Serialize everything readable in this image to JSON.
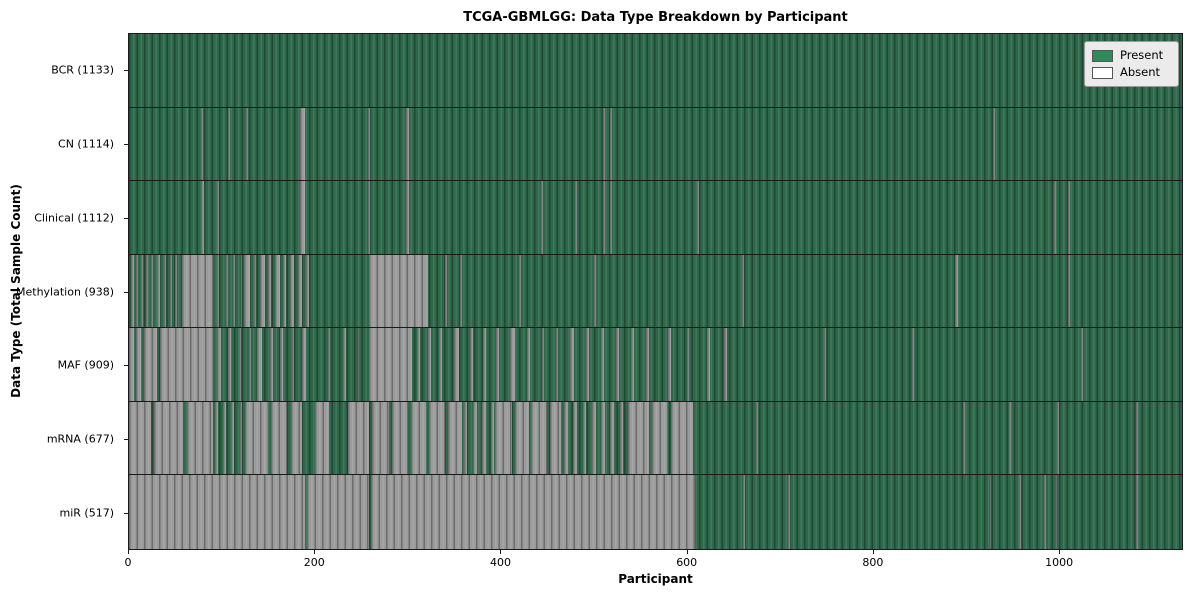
{
  "title": "TCGA-GBMLGG: Data Type Breakdown by Participant",
  "xlabel": "Participant",
  "ylabel": "Data Type (Total Sample Count)",
  "legend": {
    "present_label": "Present",
    "absent_label": "Absent",
    "present_color": "#2e8b57",
    "absent_color": "#ffffff"
  },
  "colors": {
    "present_fill": "#2e684b",
    "absent_fill": "#9b9b9b",
    "frame": "#1a1a1a",
    "legend_bg": "#ebebeb"
  },
  "chart_data": {
    "type": "heatmap",
    "title": "TCGA-GBMLGG: Data Type Breakdown by Participant",
    "xlabel": "Participant",
    "ylabel": "Data Type (Total Sample Count)",
    "legend": [
      "Present",
      "Absent"
    ],
    "legend_position": "upper right",
    "x_range": [
      0,
      1133
    ],
    "x_ticks": [
      0,
      200,
      400,
      600,
      800,
      1000
    ],
    "total_participants": 1133,
    "rows": [
      {
        "label": "BCR (1133)",
        "name": "BCR",
        "present_count": 1133,
        "absent_intervals": []
      },
      {
        "label": "CN (1114)",
        "name": "CN",
        "present_count": 1114,
        "absent_intervals": [
          [
            62,
            64
          ],
          [
            78,
            80
          ],
          [
            107,
            109
          ],
          [
            126,
            128
          ],
          [
            184,
            189
          ],
          [
            257,
            259
          ],
          [
            298,
            301
          ],
          [
            510,
            512
          ],
          [
            518,
            520
          ],
          [
            930,
            932
          ]
        ]
      },
      {
        "label": "Clinical (1112)",
        "name": "Clinical",
        "present_count": 1112,
        "absent_intervals": [
          [
            62,
            64
          ],
          [
            78,
            81
          ],
          [
            95,
            97
          ],
          [
            184,
            189
          ],
          [
            257,
            259
          ],
          [
            298,
            301
          ],
          [
            443,
            445
          ],
          [
            480,
            482
          ],
          [
            510,
            512
          ],
          [
            518,
            520
          ],
          [
            611,
            613
          ],
          [
            995,
            997
          ],
          [
            1010,
            1012
          ]
        ]
      },
      {
        "label": "Methylation (938)",
        "name": "Methylation",
        "present_count": 938,
        "absent_intervals": [
          [
            2,
            5
          ],
          [
            8,
            10
          ],
          [
            13,
            15
          ],
          [
            18,
            20
          ],
          [
            24,
            26
          ],
          [
            30,
            33
          ],
          [
            38,
            40
          ],
          [
            44,
            46
          ],
          [
            50,
            52
          ],
          [
            57,
            90
          ],
          [
            95,
            97
          ],
          [
            104,
            106
          ],
          [
            112,
            114
          ],
          [
            120,
            122
          ],
          [
            124,
            130
          ],
          [
            134,
            137
          ],
          [
            141,
            146
          ],
          [
            150,
            153
          ],
          [
            157,
            162
          ],
          [
            166,
            169
          ],
          [
            173,
            178
          ],
          [
            182,
            186
          ],
          [
            190,
            194
          ],
          [
            258,
            322
          ],
          [
            340,
            342
          ],
          [
            356,
            358
          ],
          [
            420,
            422
          ],
          [
            500,
            502
          ],
          [
            660,
            662
          ],
          [
            889,
            892
          ],
          [
            1010,
            1012
          ]
        ]
      },
      {
        "label": "MAF (909)",
        "name": "MAF",
        "present_count": 909,
        "absent_intervals": [
          [
            0,
            5
          ],
          [
            7,
            13
          ],
          [
            16,
            30
          ],
          [
            33,
            90
          ],
          [
            95,
            99
          ],
          [
            107,
            110
          ],
          [
            118,
            121
          ],
          [
            129,
            131
          ],
          [
            138,
            143
          ],
          [
            152,
            155
          ],
          [
            163,
            166
          ],
          [
            175,
            178
          ],
          [
            186,
            190
          ],
          [
            214,
            216
          ],
          [
            230,
            233
          ],
          [
            246,
            248
          ],
          [
            258,
            305
          ],
          [
            310,
            313
          ],
          [
            322,
            325
          ],
          [
            334,
            337
          ],
          [
            350,
            355
          ],
          [
            367,
            370
          ],
          [
            381,
            384
          ],
          [
            395,
            398
          ],
          [
            410,
            415
          ],
          [
            428,
            431
          ],
          [
            444,
            447
          ],
          [
            459,
            462
          ],
          [
            474,
            479
          ],
          [
            492,
            495
          ],
          [
            508,
            511
          ],
          [
            524,
            527
          ],
          [
            540,
            543
          ],
          [
            556,
            559
          ],
          [
            580,
            583
          ],
          [
            600,
            603
          ],
          [
            622,
            625
          ],
          [
            640,
            643
          ],
          [
            748,
            750
          ],
          [
            843,
            845
          ],
          [
            1024,
            1026
          ]
        ]
      },
      {
        "label": "mRNA (677)",
        "name": "mRNA",
        "present_count": 677,
        "absent_intervals": [
          [
            0,
            24
          ],
          [
            27,
            58
          ],
          [
            62,
            90
          ],
          [
            92,
            96
          ],
          [
            101,
            104
          ],
          [
            110,
            113
          ],
          [
            119,
            122
          ],
          [
            125,
            150
          ],
          [
            153,
            170
          ],
          [
            174,
            186
          ],
          [
            200,
            215
          ],
          [
            236,
            258
          ],
          [
            261,
            280
          ],
          [
            283,
            300
          ],
          [
            303,
            320
          ],
          [
            323,
            340
          ],
          [
            343,
            358
          ],
          [
            360,
            364
          ],
          [
            370,
            374
          ],
          [
            380,
            384
          ],
          [
            390,
            393
          ],
          [
            394,
            412
          ],
          [
            415,
            430
          ],
          [
            433,
            450
          ],
          [
            453,
            465
          ],
          [
            468,
            472
          ],
          [
            478,
            482
          ],
          [
            488,
            492
          ],
          [
            498,
            502
          ],
          [
            508,
            512
          ],
          [
            518,
            522
          ],
          [
            528,
            532
          ],
          [
            537,
            560
          ],
          [
            563,
            580
          ],
          [
            583,
            607
          ],
          [
            675,
            677
          ],
          [
            897,
            899
          ],
          [
            947,
            949
          ],
          [
            999,
            1001
          ],
          [
            1084,
            1086
          ]
        ]
      },
      {
        "label": "miR (517)",
        "name": "miR",
        "present_count": 517,
        "absent_intervals": [
          [
            0,
            189
          ],
          [
            191,
            258
          ],
          [
            260,
            609
          ],
          [
            661,
            663
          ],
          [
            709,
            711
          ],
          [
            926,
            928
          ],
          [
            958,
            960
          ],
          [
            985,
            987
          ],
          [
            997,
            999
          ],
          [
            1084,
            1086
          ]
        ]
      }
    ]
  }
}
